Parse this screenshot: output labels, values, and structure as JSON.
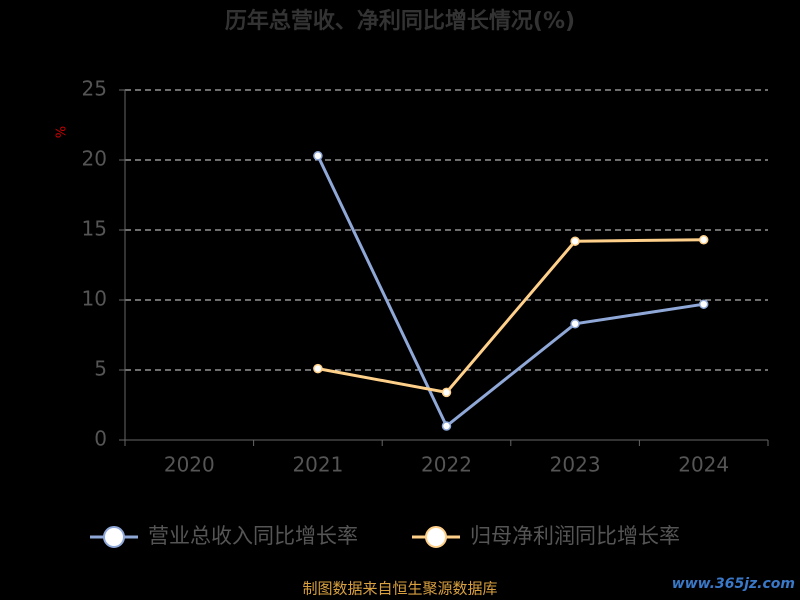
{
  "chart_data": {
    "type": "line",
    "title": "历年总营收、净利同比增长情况(%)",
    "y_label": "%",
    "categories": [
      "2020",
      "2021",
      "2022",
      "2023",
      "2024"
    ],
    "series": [
      {
        "name": "营业总收入同比增长率",
        "color": "#8fa8d8",
        "values": [
          null,
          20.3,
          1.0,
          8.3,
          9.7
        ]
      },
      {
        "name": "归母净利润同比增长率",
        "color": "#ffd08a",
        "values": [
          null,
          5.1,
          3.4,
          14.2,
          14.3
        ]
      }
    ],
    "ylim": [
      0,
      25
    ],
    "yticks": [
      0,
      5,
      10,
      15,
      20,
      25
    ],
    "grid": true,
    "legend": "bottom",
    "source": "制图数据来自恒生聚源数据库",
    "watermark": "www.365jz.com"
  }
}
